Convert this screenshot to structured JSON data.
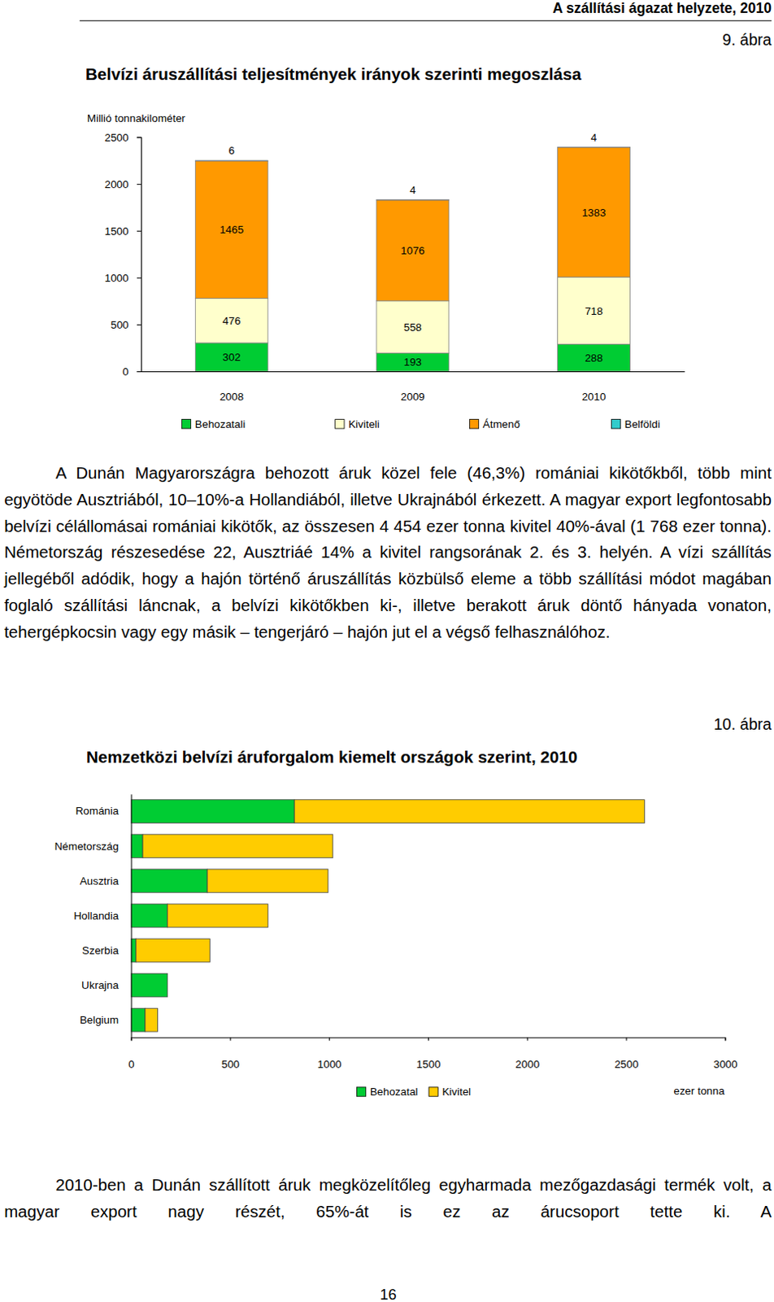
{
  "header": {
    "title": "A szállítási ágazat helyzete, 2010"
  },
  "figure_labels": [
    "9. ábra",
    "10. ábra"
  ],
  "chart_data": [
    {
      "type": "bar",
      "title": "Belvízi áruszállítási teljesítmények irányok szerinti megoszlása",
      "y_label": "Millió tonnakilométer",
      "categories": [
        "2008",
        "2009",
        "2010"
      ],
      "series": [
        {
          "name": "Behozatali",
          "color": "#00cc33",
          "values": [
            302,
            193,
            288
          ]
        },
        {
          "name": "Kiviteli",
          "color": "#ffffcc",
          "values": [
            476,
            558,
            718
          ]
        },
        {
          "name": "Átmenő",
          "color": "#ff9900",
          "values": [
            1465,
            1076,
            1383
          ]
        },
        {
          "name": "Belföldi",
          "color": "#33cccc",
          "values": [
            6,
            4,
            4
          ]
        }
      ],
      "ylim": [
        0,
        2500
      ],
      "yticks": [
        0,
        500,
        1000,
        1500,
        2000,
        2500
      ],
      "stacked": true,
      "data_labels": true,
      "grid": false,
      "legend": "bottom"
    },
    {
      "type": "bar",
      "orientation": "horizontal",
      "title": "Nemzetközi belvízi áruforgalom kiemelt országok szerint, 2010",
      "x_label": "ezer tonna",
      "categories": [
        "Románia",
        "Németország",
        "Ausztria",
        "Hollandia",
        "Szerbia",
        "Ukrajna",
        "Belgium"
      ],
      "series": [
        {
          "name": "Behozatal",
          "color": "#00cc33",
          "values": [
            825,
            59,
            385,
            184,
            25,
            184,
            71
          ]
        },
        {
          "name": "Kivitel",
          "color": "#ffcc00",
          "values": [
            1768,
            960,
            610,
            507,
            373,
            0,
            63
          ]
        }
      ],
      "xlim": [
        0,
        3000
      ],
      "xticks": [
        0,
        500,
        1000,
        1500,
        2000,
        2500,
        3000
      ],
      "stacked": true,
      "grid": false,
      "legend": "bottom"
    }
  ],
  "paragraphs": [
    "A Dunán Magyarországra behozott áruk közel fele (46,3%) romániai kikötőkből, több mint egyötöde Ausztriából, 10–10%-a Hollandiából, illetve Ukrajnából érkezett. A magyar export legfontosabb belvízi célállomásai romániai kikötők, az összesen 4 454 ezer tonna kivitel 40%-ával (1 768 ezer tonna). Németország részesedése 22, Ausztriáé 14% a kivitel rangsorának 2. és 3. helyén. A vízi szállítás jellegéből adódik, hogy a hajón történő áruszállítás közbülső eleme a több szállítási módot magában foglaló szállítási láncnak, a belvízi kikötőkben ki-, illetve berakott áruk döntő hányada vonaton, tehergépkocsin vagy egy másik – tengerjáró – hajón jut el a végső felhasználóhoz.",
    "2010-ben a Dunán szállított áruk megközelítőleg egyharmada mezőgazdasági termék volt, a magyar export nagy részét, 65%-át is ez az árucsoport tette ki. A"
  ],
  "footer": {
    "page_number": "16"
  }
}
